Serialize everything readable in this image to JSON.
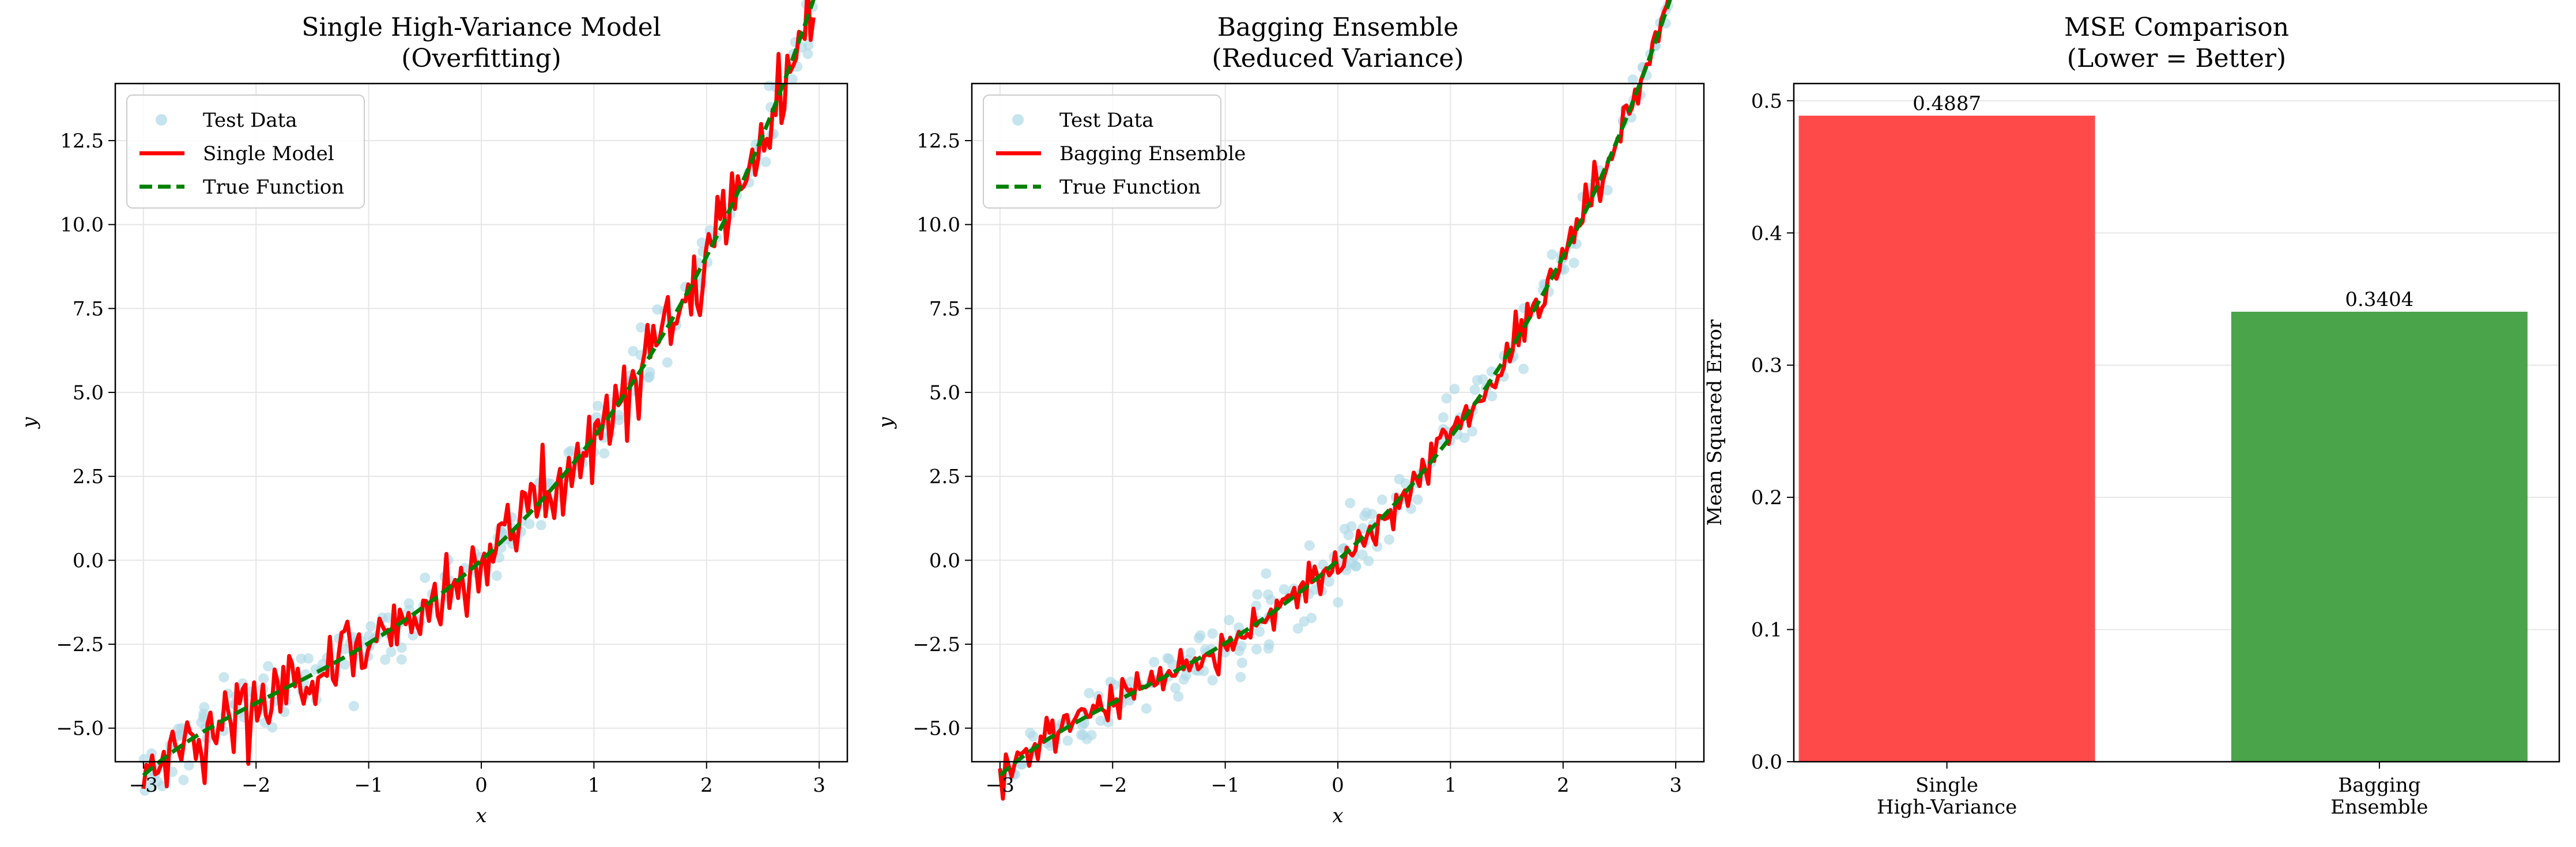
{
  "colors": {
    "scatter": "#add8e6",
    "model_line": "#ff0000",
    "true_line": "#008000",
    "bar_single": "#ff4a4a",
    "bar_bagging": "#4aa44a",
    "grid": "#e6e6e6"
  },
  "chart_data": [
    {
      "type": "scatter+line",
      "title": [
        "Single High-Variance Model",
        "(Overfitting)"
      ],
      "xlabel": "x",
      "ylabel": "y",
      "xlim": [
        -3.25,
        3.25
      ],
      "ylim": [
        -6.0,
        14.2
      ],
      "xticks": [
        -3,
        -2,
        -1,
        0,
        1,
        2,
        3
      ],
      "xtick_labels": [
        "−3",
        "−2",
        "−1",
        "0",
        "1",
        "2",
        "3"
      ],
      "yticks": [
        -5.0,
        -2.5,
        0.0,
        2.5,
        5.0,
        7.5,
        10.0,
        12.5
      ],
      "ytick_labels": [
        "−5.0",
        "−2.5",
        "0.0",
        "2.5",
        "5.0",
        "7.5",
        "10.0",
        "12.5"
      ],
      "grid": true,
      "legend_position": "top-left",
      "legend": [
        "Test Data",
        "Single Model",
        "True Function"
      ],
      "x_range": [
        -3.0,
        2.95
      ],
      "true_function_curve": "y = 0.6*x^2 + 2.6*x + 0.4*sinh(x)",
      "series": [
        {
          "name": "Test Data",
          "kind": "scatter",
          "approx_points": 200,
          "noise_sd": 0.5
        },
        {
          "name": "Single Model",
          "kind": "line",
          "noise_sd": 0.6,
          "jagged": true
        },
        {
          "name": "True Function",
          "kind": "line",
          "dashed": true
        }
      ]
    },
    {
      "type": "scatter+line",
      "title": [
        "Bagging Ensemble",
        "(Reduced Variance)"
      ],
      "xlabel": "x",
      "ylabel": "y",
      "xlim": [
        -3.25,
        3.25
      ],
      "ylim": [
        -6.0,
        14.2
      ],
      "xticks": [
        -3,
        -2,
        -1,
        0,
        1,
        2,
        3
      ],
      "xtick_labels": [
        "−3",
        "−2",
        "−1",
        "0",
        "1",
        "2",
        "3"
      ],
      "yticks": [
        -5.0,
        -2.5,
        0.0,
        2.5,
        5.0,
        7.5,
        10.0,
        12.5
      ],
      "ytick_labels": [
        "−5.0",
        "−2.5",
        "0.0",
        "2.5",
        "5.0",
        "7.5",
        "10.0",
        "12.5"
      ],
      "grid": true,
      "legend_position": "top-left",
      "legend": [
        "Test Data",
        "Bagging Ensemble",
        "True Function"
      ],
      "x_range": [
        -3.0,
        2.95
      ],
      "true_function_curve": "y = 0.6*x^2 + 2.6*x + 0.4*sinh(x)",
      "series": [
        {
          "name": "Test Data",
          "kind": "scatter",
          "approx_points": 200,
          "noise_sd": 0.5
        },
        {
          "name": "Bagging Ensemble",
          "kind": "line",
          "noise_sd": 0.3,
          "jagged": true
        },
        {
          "name": "True Function",
          "kind": "line",
          "dashed": true
        }
      ]
    },
    {
      "type": "bar",
      "title": [
        "MSE Comparison",
        "(Lower = Better)"
      ],
      "ylabel": "Mean Squared Error",
      "ylim": [
        0,
        0.513
      ],
      "yticks": [
        0.0,
        0.1,
        0.2,
        0.3,
        0.4,
        0.5
      ],
      "ytick_labels": [
        "0.0",
        "0.1",
        "0.2",
        "0.3",
        "0.4",
        "0.5"
      ],
      "grid": true,
      "categories": [
        [
          "Single",
          "High-Variance"
        ],
        [
          "Bagging",
          "Ensemble"
        ]
      ],
      "values": [
        0.4887,
        0.3404
      ],
      "data_labels": [
        "0.4887",
        "0.3404"
      ]
    }
  ]
}
